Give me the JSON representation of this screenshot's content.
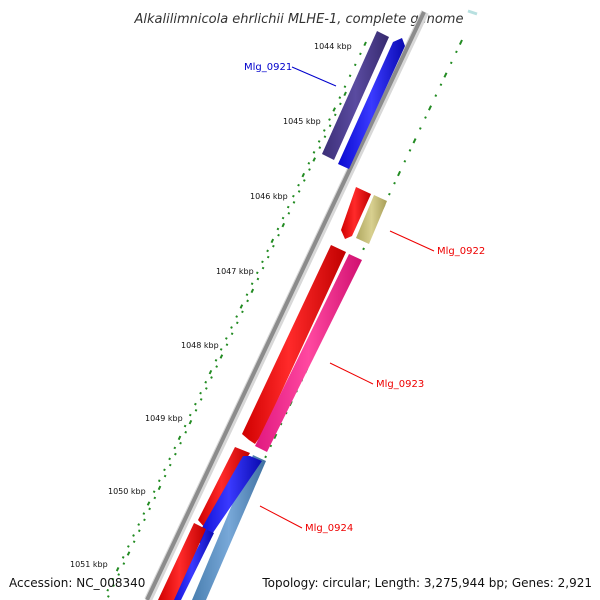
{
  "title": "Alkalilimnicola ehrlichii MLHE-1, complete genome",
  "footer": {
    "accession": "Accession: NC_008340",
    "info": "Topology: circular; Length: 3,275,944 bp; Genes: 2,921"
  },
  "ticks": [
    "1044 kbp",
    "1045 kbp",
    "1046 kbp",
    "1047 kbp",
    "1048 kbp",
    "1049 kbp",
    "1050 kbp",
    "1051 kbp"
  ],
  "genes": [
    {
      "label": "Mlg_0921",
      "label_color": "#0000cc",
      "features": [
        "CDS (forward strand)",
        "gene"
      ]
    },
    {
      "label": "Mlg_0922",
      "label_color": "#ee0000",
      "features": [
        "CDS (reverse strand)",
        "tRNA / RNA"
      ]
    },
    {
      "label": "Mlg_0923",
      "label_color": "#ee0000",
      "features": [
        "CDS (reverse strand)",
        "gene"
      ]
    },
    {
      "label": "Mlg_0924",
      "label_color": "#ee0000",
      "features": [
        "CDS (reverse strand)",
        "CDS (forward strand)",
        "gene"
      ]
    }
  ],
  "colors": {
    "backbone": "#8c8c8c",
    "forward_cds": "#1010ee",
    "reverse_cds": "#ee1010",
    "gene_purple": "#4b3d8f",
    "gene_pink": "#f0288c",
    "gene_olive": "#c8c07a",
    "gene_steel": "#5a8fc0",
    "tick_dots": "#228b22"
  }
}
